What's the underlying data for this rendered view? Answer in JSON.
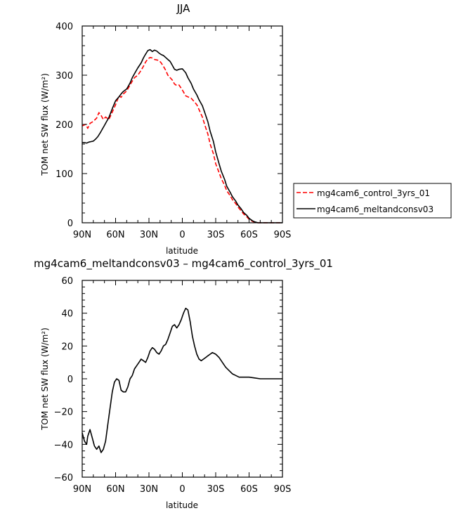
{
  "chart_data": [
    {
      "type": "line",
      "title": "JJA",
      "xlabel": "latitude",
      "ylabel": "TOM net SW flux (W/m²)",
      "x_tick_labels": [
        "90N",
        "60N",
        "30N",
        "0",
        "30S",
        "60S",
        "90S"
      ],
      "x_tick_values": [
        90,
        60,
        30,
        0,
        -30,
        -60,
        -90
      ],
      "xlim": [
        90,
        -90
      ],
      "y_tick_labels": [
        "0",
        "100",
        "200",
        "300",
        "400"
      ],
      "y_tick_values": [
        0,
        100,
        200,
        300,
        400
      ],
      "ylim": [
        0,
        400
      ],
      "legend_position": "right",
      "series": [
        {
          "name": "mg4cam6_control_3yrs_01",
          "color": "#ff0000",
          "dash": "dashed",
          "x": [
            90,
            87,
            85,
            83,
            80,
            77,
            75,
            73,
            71,
            69,
            66,
            63,
            60,
            57,
            55,
            53,
            50,
            47,
            45,
            43,
            40,
            37,
            35,
            33,
            31,
            29,
            27,
            25,
            23,
            21,
            19,
            17,
            15,
            13,
            11,
            9,
            7,
            5,
            3,
            0,
            -3,
            -5,
            -8,
            -10,
            -13,
            -15,
            -18,
            -20,
            -23,
            -25,
            -28,
            -30,
            -33,
            -35,
            -38,
            -40,
            -43,
            -45,
            -48,
            -50,
            -53,
            -55,
            -58,
            -60,
            -63,
            -65,
            -68,
            -70,
            -73,
            -75,
            -78,
            -80,
            -83,
            -85,
            -90
          ],
          "y": [
            197,
            200,
            192,
            202,
            206,
            213,
            224,
            218,
            210,
            215,
            210,
            225,
            240,
            258,
            255,
            262,
            268,
            280,
            288,
            295,
            300,
            310,
            318,
            327,
            333,
            336,
            335,
            332,
            331,
            330,
            325,
            318,
            310,
            300,
            295,
            290,
            282,
            279,
            280,
            270,
            258,
            256,
            253,
            248,
            240,
            230,
            215,
            200,
            180,
            160,
            140,
            120,
            102,
            90,
            76,
            65,
            55,
            47,
            39,
            32,
            24,
            18,
            12,
            7,
            3,
            1,
            0,
            0,
            0,
            0,
            0,
            0,
            0,
            0,
            0
          ]
        },
        {
          "name": "mg4cam6_meltandconsv03",
          "color": "#000000",
          "dash": "solid",
          "x": [
            90,
            88,
            86,
            84,
            82,
            80,
            78,
            76,
            74,
            72,
            70,
            68,
            66,
            63,
            60,
            57,
            55,
            53,
            50,
            47,
            45,
            43,
            40,
            37,
            35,
            33,
            31,
            29,
            27,
            25,
            23,
            21,
            19,
            17,
            15,
            13,
            11,
            9,
            7,
            5,
            3,
            0,
            -3,
            -5,
            -8,
            -10,
            -13,
            -15,
            -18,
            -20,
            -23,
            -25,
            -28,
            -30,
            -33,
            -35,
            -38,
            -40,
            -43,
            -45,
            -48,
            -50,
            -53,
            -55,
            -58,
            -60,
            -63,
            -65,
            -68,
            -70,
            -73,
            -75,
            -78,
            -80,
            -83,
            -85,
            -90
          ],
          "y": [
            163,
            163,
            162,
            164,
            165,
            166,
            170,
            175,
            182,
            190,
            198,
            206,
            214,
            232,
            248,
            256,
            262,
            267,
            272,
            284,
            295,
            303,
            315,
            325,
            335,
            343,
            350,
            352,
            348,
            351,
            349,
            345,
            342,
            340,
            336,
            332,
            328,
            320,
            312,
            310,
            312,
            313,
            305,
            295,
            283,
            272,
            260,
            250,
            238,
            225,
            205,
            186,
            165,
            144,
            120,
            105,
            88,
            74,
            62,
            53,
            44,
            36,
            28,
            21,
            15,
            9,
            4,
            2,
            0,
            0,
            0,
            0,
            0,
            0,
            0,
            0,
            0
          ]
        }
      ]
    },
    {
      "type": "line",
      "title": "mg4cam6_meltandconsv03 – mg4cam6_control_3yrs_01",
      "xlabel": "latitude",
      "ylabel": "TOM net SW flux (W/m²)",
      "x_tick_labels": [
        "90N",
        "60N",
        "30N",
        "0",
        "30S",
        "60S",
        "90S"
      ],
      "x_tick_values": [
        90,
        60,
        30,
        0,
        -30,
        -60,
        -90
      ],
      "xlim": [
        90,
        -90
      ],
      "y_tick_labels": [
        "−60",
        "−40",
        "−20",
        "0",
        "20",
        "40",
        "60"
      ],
      "y_tick_values": [
        -60,
        -40,
        -20,
        0,
        20,
        40,
        60
      ],
      "ylim": [
        -60,
        60
      ],
      "series": [
        {
          "name": "",
          "color": "#000000",
          "dash": "solid",
          "x": [
            90,
            88,
            86,
            85,
            83,
            81,
            79,
            77,
            75,
            73,
            71,
            69,
            67,
            65,
            63,
            61,
            59,
            57,
            55,
            53,
            51,
            49,
            47,
            45,
            43,
            41,
            39,
            37,
            35,
            33,
            31,
            29,
            27,
            25,
            23,
            21,
            19,
            17,
            15,
            13,
            11,
            9,
            7,
            5,
            3,
            1,
            -1,
            -3,
            -5,
            -7,
            -9,
            -11,
            -13,
            -15,
            -17,
            -19,
            -21,
            -23,
            -25,
            -27,
            -30,
            -33,
            -36,
            -39,
            -42,
            -45,
            -48,
            -51,
            -54,
            -57,
            -60,
            -65,
            -70,
            -75,
            -80,
            -85,
            -90
          ],
          "y": [
            -33,
            -38,
            -40,
            -35,
            -31,
            -36,
            -41,
            -43,
            -41,
            -45,
            -43,
            -38,
            -28,
            -18,
            -8,
            -2,
            0,
            -1,
            -7,
            -8,
            -8,
            -5,
            0,
            2,
            6,
            8,
            10,
            12,
            11,
            10,
            13,
            17,
            19,
            18,
            16,
            15,
            17,
            20,
            21,
            24,
            28,
            32,
            33,
            31,
            33,
            36,
            40,
            43,
            42,
            35,
            26,
            20,
            15,
            12,
            11,
            12,
            13,
            14,
            15,
            16,
            15,
            13,
            10,
            7,
            5,
            3,
            2,
            1,
            1,
            1,
            1,
            0.5,
            0,
            0,
            0,
            0,
            0
          ]
        }
      ]
    }
  ]
}
